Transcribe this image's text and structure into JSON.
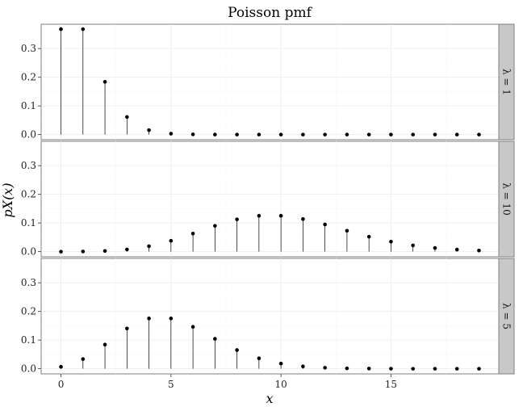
{
  "chart_data": {
    "type": "scatter",
    "subtype": "stem",
    "title": "Poisson pmf",
    "xlabel": "x",
    "ylabel": "pX(x)",
    "xlim": [
      -0.9,
      19.9
    ],
    "ylim": [
      -0.018,
      0.385
    ],
    "x_ticks": [
      0,
      5,
      10,
      15
    ],
    "y_ticks": [
      0.0,
      0.1,
      0.2,
      0.3
    ],
    "y_tick_labels": [
      "0.0",
      "0.1",
      "0.2",
      "0.3"
    ],
    "grid": true,
    "x": [
      0,
      1,
      2,
      3,
      4,
      5,
      6,
      7,
      8,
      9,
      10,
      11,
      12,
      13,
      14,
      15,
      16,
      17,
      18,
      19
    ],
    "panels": [
      {
        "strip_label": "λ = 1",
        "values": [
          0.3679,
          0.3679,
          0.1839,
          0.0613,
          0.0153,
          0.0031,
          0.0005,
          0.0001,
          0.0,
          0.0,
          0.0,
          0.0,
          0.0,
          0.0,
          0.0,
          0.0,
          0.0,
          0.0,
          0.0,
          0.0
        ]
      },
      {
        "strip_label": "λ = 10",
        "values": [
          0.0,
          0.0005,
          0.0023,
          0.0076,
          0.0189,
          0.0378,
          0.0631,
          0.0901,
          0.1126,
          0.1251,
          0.1251,
          0.1137,
          0.0948,
          0.0729,
          0.0521,
          0.0347,
          0.0217,
          0.0128,
          0.0071,
          0.0037
        ]
      },
      {
        "strip_label": "λ = 5",
        "values": [
          0.0067,
          0.0337,
          0.0842,
          0.1404,
          0.1755,
          0.1755,
          0.1462,
          0.1044,
          0.0653,
          0.0363,
          0.0181,
          0.0082,
          0.0034,
          0.0013,
          0.0005,
          0.0002,
          0.0,
          0.0,
          0.0,
          0.0
        ]
      }
    ]
  }
}
